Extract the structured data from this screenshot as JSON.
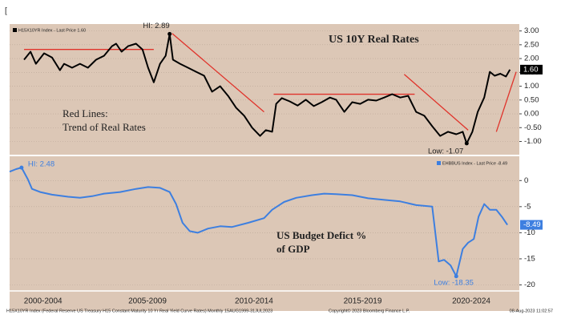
{
  "corner_mark": "[",
  "footer": {
    "source": "H15X10YR Index (Federal Reserve US Treasury H15 Constant Maturity 10 Yr Real Yield Curve Rates)  Monthly 15AUG1999-31JUL2023",
    "copyright": "Copyright© 2023 Bloomberg Finance L.P.",
    "timestamp": "08-Aug-2023 11:02:57"
  },
  "chart_data": [
    {
      "type": "line",
      "title": "US 10Y Real Rates",
      "annotation_lines": [
        "Red Lines:",
        "Trend of Real Rates"
      ],
      "xlim": [
        1999,
        2023.4
      ],
      "ylim": [
        -1.45,
        3.25
      ],
      "yticks": [
        {
          "value": 3,
          "label": "3.00"
        },
        {
          "value": 2.5,
          "label": "2.50"
        },
        {
          "value": 2,
          "label": "2.00"
        },
        {
          "value": 1.5,
          "label": "1.50"
        },
        {
          "value": 1,
          "label": "1.00"
        },
        {
          "value": 0.5,
          "label": "0.50"
        },
        {
          "value": 0,
          "label": "0.00"
        },
        {
          "value": -0.5,
          "label": "-0.50"
        },
        {
          "value": -1,
          "label": "-1.00"
        }
      ],
      "grid": true,
      "series": [
        {
          "name": "H15X10YR Index - Last Price 1.60",
          "color": "#000000",
          "x": [
            1999.69,
            2000.0,
            2000.26,
            2000.65,
            2001.03,
            2001.41,
            2001.61,
            2001.99,
            2002.37,
            2002.75,
            2003.14,
            2003.52,
            2003.9,
            2004.1,
            2004.36,
            2004.67,
            2005.05,
            2005.36,
            2005.63,
            2005.9,
            2006.2,
            2006.47,
            2006.66,
            2006.82,
            2007.16,
            2007.54,
            2007.93,
            2008.31,
            2008.69,
            2009.08,
            2009.46,
            2009.84,
            2010.23,
            2010.61,
            2010.99,
            2011.26,
            2011.57,
            2011.76,
            2012.03,
            2012.41,
            2012.79,
            2013.18,
            2013.56,
            2013.94,
            2014.33,
            2014.63,
            2015.02,
            2015.4,
            2015.78,
            2016.16,
            2016.55,
            2016.93,
            2017.31,
            2017.7,
            2018.08,
            2018.46,
            2018.85,
            2019.23,
            2019.61,
            2019.99,
            2020.38,
            2020.69,
            2020.88,
            2021.15,
            2021.41,
            2021.72,
            2021.99,
            2022.22,
            2022.49,
            2022.76,
            2022.95
          ],
          "values": [
            1.96,
            2.25,
            1.81,
            2.19,
            2.04,
            1.58,
            1.81,
            1.67,
            1.81,
            1.67,
            1.96,
            2.1,
            2.45,
            2.54,
            2.25,
            2.45,
            2.54,
            2.33,
            1.67,
            1.14,
            1.81,
            2.1,
            2.89,
            1.96,
            1.81,
            1.67,
            1.52,
            1.38,
            0.8,
            1.0,
            0.65,
            0.22,
            -0.07,
            -0.5,
            -0.8,
            -0.59,
            -0.65,
            0.36,
            0.57,
            0.45,
            0.3,
            0.51,
            0.28,
            0.42,
            0.59,
            0.51,
            0.07,
            0.42,
            0.36,
            0.51,
            0.48,
            0.59,
            0.71,
            0.59,
            0.65,
            0.07,
            -0.07,
            -0.45,
            -0.8,
            -0.65,
            -0.74,
            -0.65,
            -1.07,
            -0.65,
            0.07,
            0.59,
            1.52,
            1.38,
            1.45,
            1.35,
            1.6
          ]
        }
      ],
      "last_price": {
        "value": 1.6,
        "label": "1.60"
      },
      "annotations": [
        {
          "text": "HI: 2.89",
          "x": 2006.66,
          "y": 2.89
        },
        {
          "text": "Low: -1.07",
          "x": 2020.88,
          "y": -1.07
        }
      ],
      "trend_color": "#e0332b",
      "trend_lines": [
        {
          "x": [
            1999.69,
            2005.9
          ],
          "y": [
            2.33,
            2.33
          ]
        },
        {
          "x": [
            2006.78,
            2011.18
          ],
          "y": [
            2.91,
            0.07
          ]
        },
        {
          "x": [
            2011.64,
            2018.39
          ],
          "y": [
            0.71,
            0.71
          ]
        },
        {
          "x": [
            2017.89,
            2020.95
          ],
          "y": [
            1.43,
            -0.59
          ]
        },
        {
          "x": [
            2022.3,
            2023.25
          ],
          "y": [
            -0.65,
            1.52
          ]
        }
      ]
    },
    {
      "type": "line",
      "title_lines": [
        "US Budget Defict %",
        "of GDP"
      ],
      "xlim": [
        1999,
        2023.4
      ],
      "ylim": [
        -21,
        4.5
      ],
      "yticks": [
        0,
        -5,
        -10,
        -15,
        -20
      ],
      "grid": true,
      "xticks": [
        {
          "value": 2000.6,
          "label": "2000-2004"
        },
        {
          "value": 2005.6,
          "label": "2005-2009"
        },
        {
          "value": 2010.7,
          "label": "2010-2014"
        },
        {
          "value": 2015.9,
          "label": "2015-2019"
        },
        {
          "value": 2021.1,
          "label": "2020-2024"
        }
      ],
      "series": [
        {
          "name": "EHBBUS Index - Last Price -8.49",
          "color": "#3d7fe0",
          "x": [
            1999.0,
            1999.31,
            1999.57,
            1999.88,
            2000.07,
            2000.46,
            2001.03,
            2001.8,
            2002.37,
            2002.95,
            2003.52,
            2004.29,
            2005.05,
            2005.63,
            2006.2,
            2006.66,
            2006.97,
            2007.28,
            2007.62,
            2008.0,
            2008.5,
            2009.08,
            2009.65,
            2010.42,
            2011.18,
            2011.57,
            2012.14,
            2012.72,
            2013.48,
            2014.06,
            2014.63,
            2015.4,
            2016.16,
            2016.93,
            2017.7,
            2018.46,
            2019.23,
            2019.54,
            2019.8,
            2020.11,
            2020.38,
            2020.69,
            2020.95,
            2021.22,
            2021.45,
            2021.72,
            2021.99,
            2022.3,
            2022.56,
            2022.83
          ],
          "values": [
            1.7,
            2.2,
            2.48,
            0.2,
            -1.6,
            -2.2,
            -2.7,
            -3.1,
            -3.3,
            -3.0,
            -2.5,
            -2.2,
            -1.6,
            -1.25,
            -1.4,
            -2.2,
            -4.5,
            -8.1,
            -9.7,
            -10.0,
            -9.2,
            -8.75,
            -8.9,
            -8.1,
            -7.2,
            -5.6,
            -4.1,
            -3.3,
            -2.8,
            -2.5,
            -2.6,
            -2.8,
            -3.4,
            -3.7,
            -4.0,
            -4.7,
            -5.0,
            -15.5,
            -15.2,
            -16.25,
            -18.35,
            -13.1,
            -11.9,
            -11.2,
            -6.9,
            -4.5,
            -5.6,
            -5.6,
            -6.9,
            -8.49
          ]
        }
      ],
      "last_price": {
        "value": -8.49,
        "label": "-8.49"
      },
      "annotations": [
        {
          "text": "HI: 2.48",
          "x": 1999.57,
          "y": 2.48
        },
        {
          "text": "Low: -18.35",
          "x": 2020.38,
          "y": -18.35
        }
      ]
    }
  ]
}
